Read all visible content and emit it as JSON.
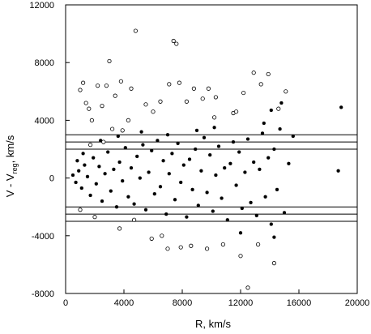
{
  "chart_data": {
    "type": "scatter",
    "xlabel": "R, km/s",
    "ylabel_main": "V - V",
    "ylabel_sub": "reg",
    "ylabel_tail": ", km/s",
    "xlim": [
      0,
      20000
    ],
    "ylim": [
      -8000,
      12000
    ],
    "x_ticks": [
      0,
      4000,
      8000,
      12000,
      16000,
      20000
    ],
    "y_ticks": [
      -8000,
      -4000,
      0,
      4000,
      8000,
      12000
    ],
    "x_tick_labels": [
      "0",
      "4000",
      "8000",
      "12000",
      "16000",
      "20000"
    ],
    "y_tick_labels": [
      "-8000",
      "-4000",
      "0",
      "4000",
      "8000",
      "12000"
    ],
    "grid": false,
    "reference_lines_y": [
      3000,
      2500,
      2000,
      -2000,
      -2500,
      -3000
    ],
    "series": [
      {
        "marker": "filled-circle",
        "color": "#000000",
        "points": [
          [
            500,
            200
          ],
          [
            700,
            -300
          ],
          [
            900,
            500
          ],
          [
            1100,
            -700
          ],
          [
            1300,
            900
          ],
          [
            1500,
            100
          ],
          [
            1700,
            -1200
          ],
          [
            1900,
            1400
          ],
          [
            2100,
            -400
          ],
          [
            2300,
            800
          ],
          [
            2500,
            -1600
          ],
          [
            2700,
            300
          ],
          [
            2900,
            1800
          ],
          [
            3100,
            -900
          ],
          [
            3300,
            600
          ],
          [
            3500,
            -2000
          ],
          [
            3700,
            1100
          ],
          [
            3900,
            -200
          ],
          [
            4100,
            2100
          ],
          [
            4300,
            -1300
          ],
          [
            4500,
            700
          ],
          [
            4700,
            -1800
          ],
          [
            4900,
            1500
          ],
          [
            5100,
            0
          ],
          [
            5300,
            2300
          ],
          [
            5500,
            -2200
          ],
          [
            5700,
            400
          ],
          [
            5900,
            1900
          ],
          [
            6100,
            -1100
          ],
          [
            6300,
            2600
          ],
          [
            6500,
            -600
          ],
          [
            6700,
            1200
          ],
          [
            6900,
            -2500
          ],
          [
            7100,
            300
          ],
          [
            7300,
            1700
          ],
          [
            7500,
            -1500
          ],
          [
            7700,
            2400
          ],
          [
            7900,
            -300
          ],
          [
            8100,
            900
          ],
          [
            8300,
            -2700
          ],
          [
            8500,
            1300
          ],
          [
            8700,
            -800
          ],
          [
            8900,
            2000
          ],
          [
            9100,
            -1900
          ],
          [
            9300,
            500
          ],
          [
            9500,
            2800
          ],
          [
            9700,
            -1000
          ],
          [
            9900,
            1600
          ],
          [
            10100,
            -2300
          ],
          [
            10300,
            200
          ],
          [
            10500,
            2200
          ],
          [
            10700,
            -1400
          ],
          [
            10900,
            700
          ],
          [
            11100,
            -2900
          ],
          [
            11300,
            1000
          ],
          [
            11500,
            2500
          ],
          [
            11700,
            -500
          ],
          [
            11900,
            1800
          ],
          [
            12100,
            -2100
          ],
          [
            12300,
            400
          ],
          [
            12500,
            2700
          ],
          [
            12700,
            -1700
          ],
          [
            12900,
            1100
          ],
          [
            13100,
            -2600
          ],
          [
            13300,
            600
          ],
          [
            13500,
            3100
          ],
          [
            13700,
            -1300
          ],
          [
            13900,
            1400
          ],
          [
            14100,
            -3200
          ],
          [
            14300,
            2000
          ],
          [
            14500,
            -800
          ],
          [
            14700,
            3400
          ],
          [
            15000,
            -2400
          ],
          [
            15300,
            1000
          ],
          [
            15600,
            2900
          ],
          [
            13600,
            3800
          ],
          [
            14100,
            4700
          ],
          [
            14800,
            5200
          ],
          [
            18700,
            500
          ],
          [
            18900,
            4900
          ],
          [
            14300,
            -4100
          ],
          [
            12000,
            -3800
          ],
          [
            10200,
            3500
          ],
          [
            9000,
            3300
          ],
          [
            7000,
            3000
          ],
          [
            5200,
            3200
          ],
          [
            3600,
            2900
          ],
          [
            2400,
            2600
          ],
          [
            1200,
            1700
          ],
          [
            800,
            1200
          ]
        ]
      },
      {
        "marker": "open-circle",
        "color": "#000000",
        "points": [
          [
            1000,
            6100
          ],
          [
            1200,
            6600
          ],
          [
            1400,
            5200
          ],
          [
            1600,
            4800
          ],
          [
            1800,
            4000
          ],
          [
            2200,
            6400
          ],
          [
            2500,
            5000
          ],
          [
            2800,
            6400
          ],
          [
            3000,
            8100
          ],
          [
            3400,
            5700
          ],
          [
            3800,
            6700
          ],
          [
            4500,
            6200
          ],
          [
            4800,
            10200
          ],
          [
            5500,
            5100
          ],
          [
            6000,
            4600
          ],
          [
            6500,
            5300
          ],
          [
            7100,
            6500
          ],
          [
            7400,
            9500
          ],
          [
            7600,
            9300
          ],
          [
            7800,
            6600
          ],
          [
            8300,
            5300
          ],
          [
            8800,
            6200
          ],
          [
            9400,
            5500
          ],
          [
            9800,
            6200
          ],
          [
            10300,
            5600
          ],
          [
            11500,
            4500
          ],
          [
            12200,
            5900
          ],
          [
            12900,
            7300
          ],
          [
            13400,
            6500
          ],
          [
            13900,
            7200
          ],
          [
            14600,
            4800
          ],
          [
            15100,
            6000
          ],
          [
            1700,
            2300
          ],
          [
            2600,
            2500
          ],
          [
            3200,
            3400
          ],
          [
            3900,
            3300
          ],
          [
            1000,
            -2200
          ],
          [
            2000,
            -2700
          ],
          [
            3700,
            -3500
          ],
          [
            4700,
            -2900
          ],
          [
            5900,
            -4200
          ],
          [
            6600,
            -4000
          ],
          [
            7000,
            -4900
          ],
          [
            7900,
            -4800
          ],
          [
            8600,
            -4700
          ],
          [
            9700,
            -4900
          ],
          [
            10800,
            -4600
          ],
          [
            12000,
            -5400
          ],
          [
            13200,
            -4600
          ],
          [
            12500,
            -7600
          ],
          [
            14300,
            -5900
          ],
          [
            11700,
            4600
          ],
          [
            10200,
            4200
          ],
          [
            4300,
            4000
          ]
        ]
      }
    ]
  }
}
